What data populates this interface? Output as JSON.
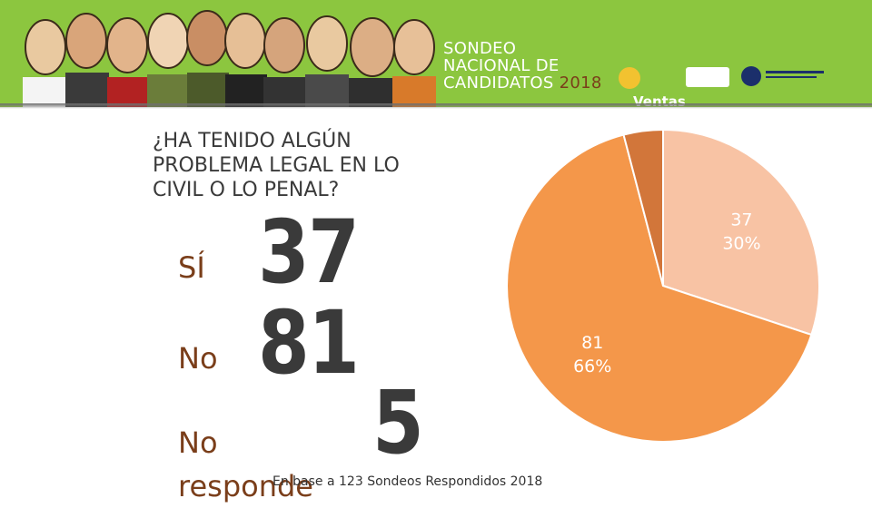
{
  "header": {
    "title_line1": "SONDEO",
    "title_line2": "NACIONAL DE",
    "title_line3": "CANDIDATOS",
    "title_year": "2018",
    "logo_ventas": "Ventas"
  },
  "question": {
    "line1": "¿HA TENIDO ALGÚN",
    "line2": "PROBLEMA LEGAL EN LO",
    "line3": "CIVIL O LO PENAL?"
  },
  "answers": [
    {
      "label": "SÍ",
      "count": "37"
    },
    {
      "label": "No",
      "count": "81"
    },
    {
      "label": "No responde",
      "count": "5"
    }
  ],
  "footnote": "En base a 123 Sondeos Respondidos 2018",
  "chart_data": {
    "type": "pie",
    "categories": [
      "SÍ",
      "No",
      "No responde"
    ],
    "values": [
      37,
      81,
      5
    ],
    "percent_labels": [
      "30%",
      "66%",
      ""
    ],
    "colors": [
      "#f8c3a4",
      "#f4974a",
      "#d2763a"
    ]
  }
}
